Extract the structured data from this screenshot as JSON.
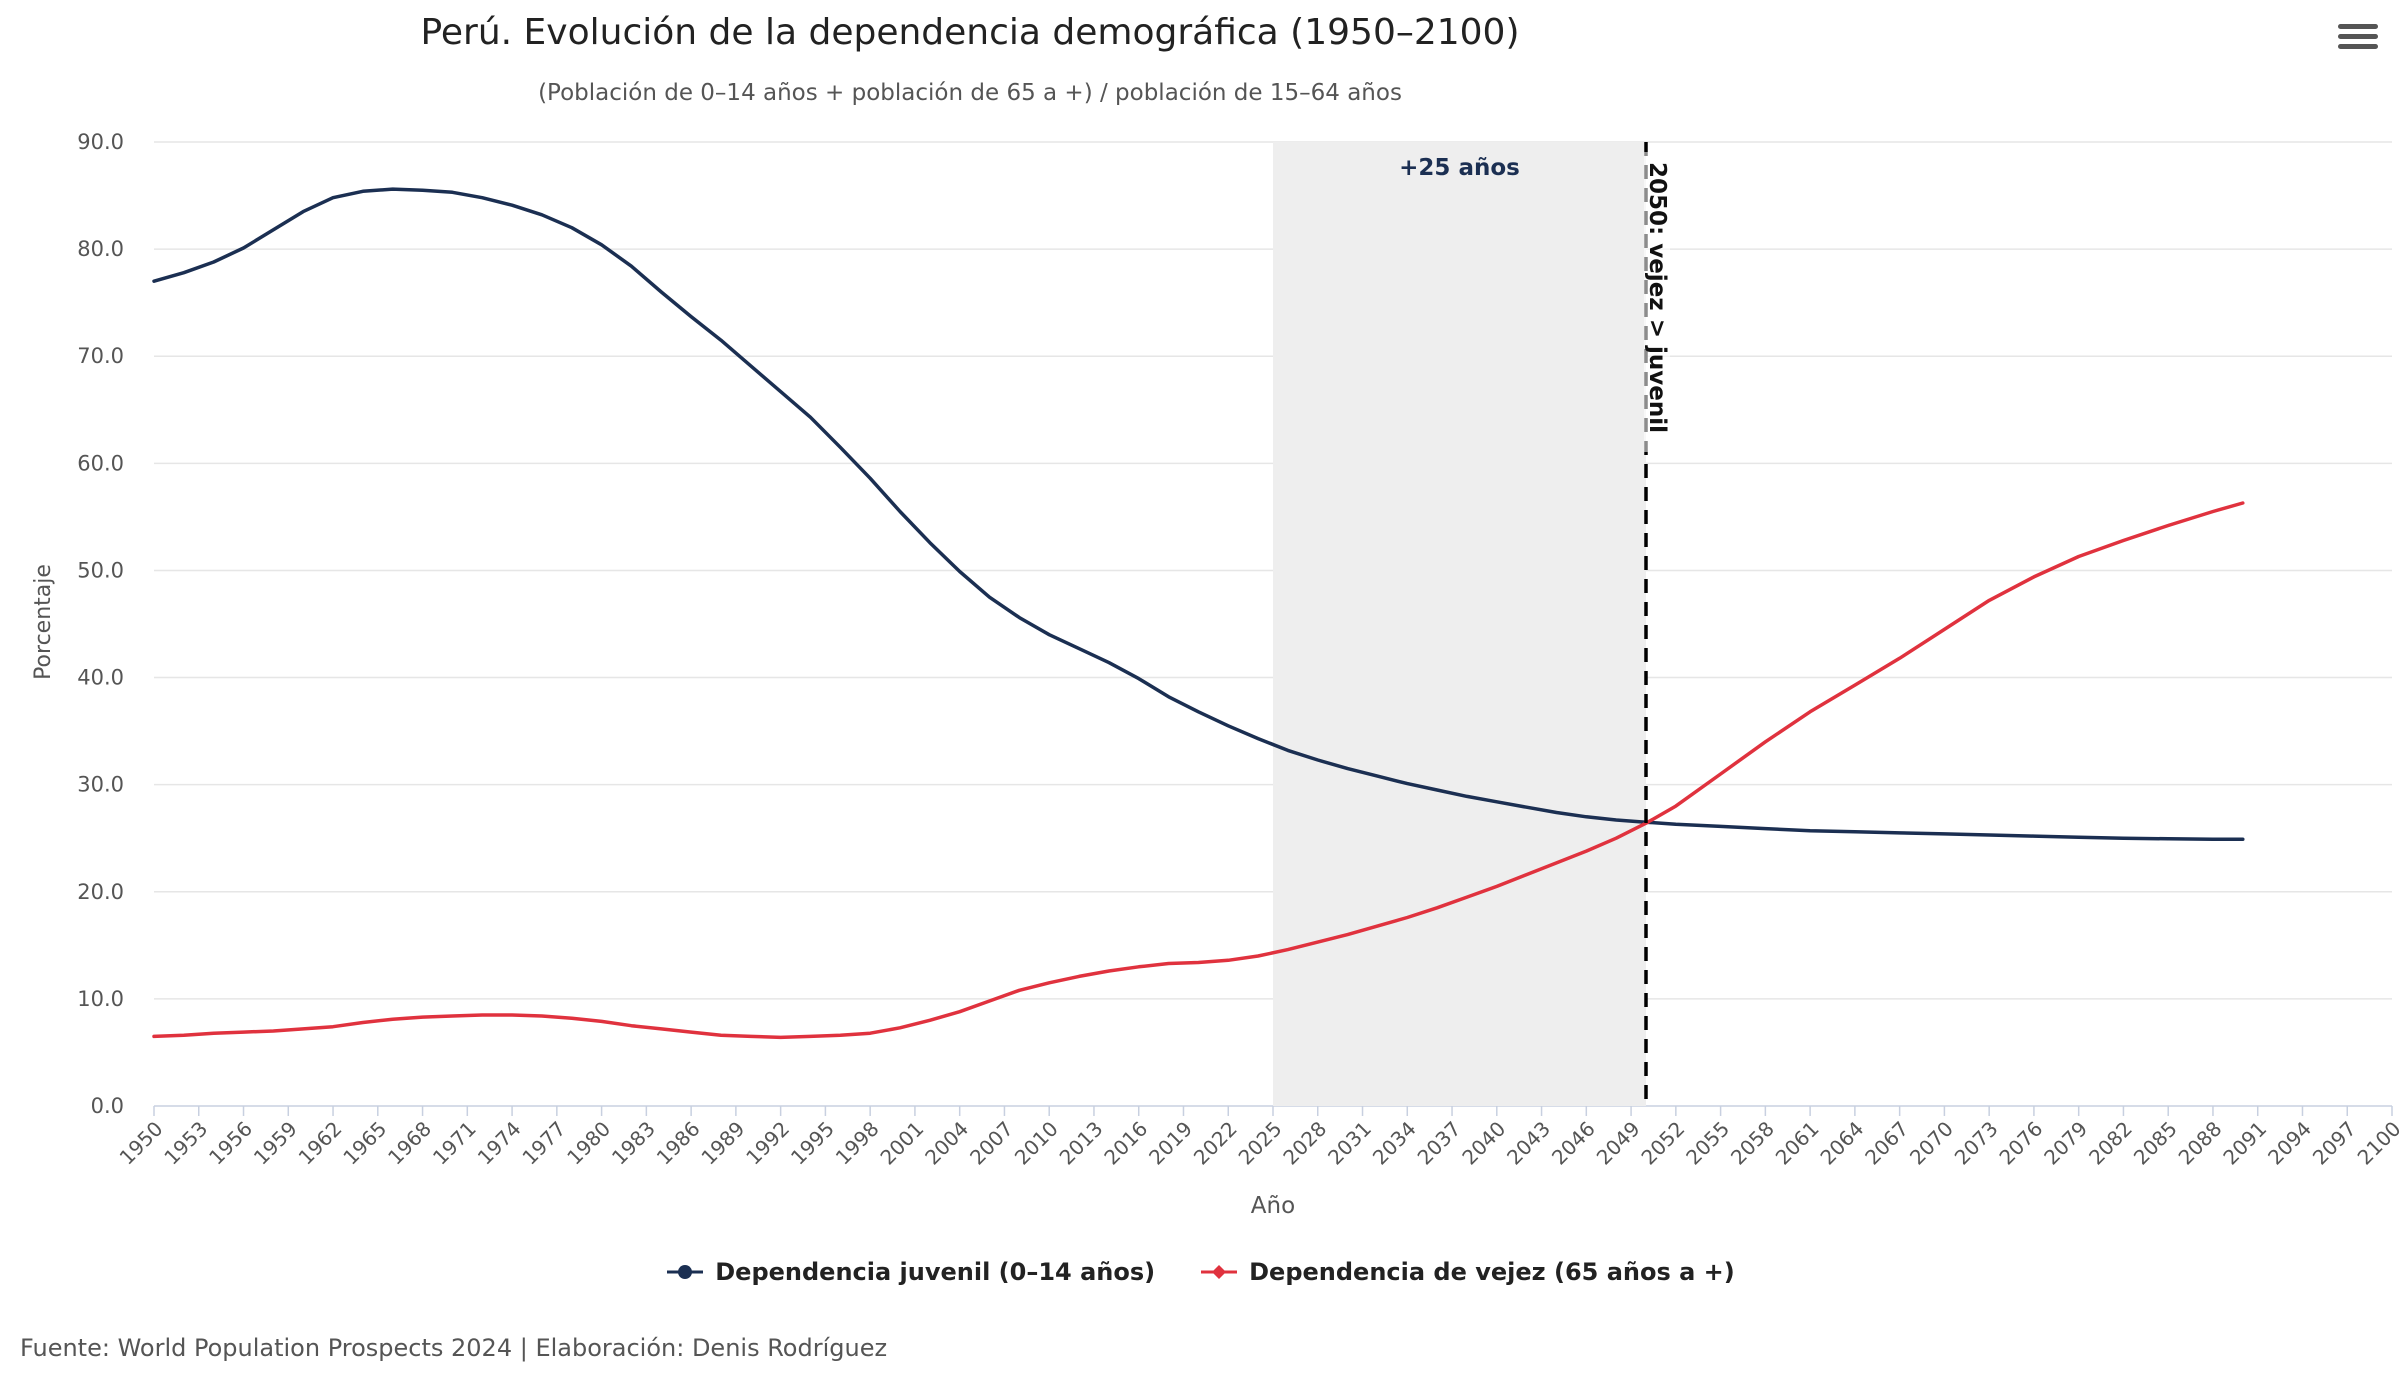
{
  "chart_data": {
    "type": "line",
    "title": "Perú. Evolución de la dependencia demográfica (1950–2100)",
    "subtitle": "(Población de 0–14 años + población de 65 a +) / población de 15–64 años",
    "xlabel": "Año",
    "ylabel": "Porcentaje",
    "xlim": [
      1950,
      2100
    ],
    "ylim": [
      0,
      90
    ],
    "y_ticks": [
      "0.0",
      "10.0",
      "20.0",
      "30.0",
      "40.0",
      "50.0",
      "60.0",
      "70.0",
      "80.0",
      "90.0"
    ],
    "x_ticks": [
      "1950",
      "1953",
      "1956",
      "1959",
      "1962",
      "1965",
      "1968",
      "1971",
      "1974",
      "1977",
      "1980",
      "1983",
      "1986",
      "1989",
      "1992",
      "1995",
      "1998",
      "2001",
      "2004",
      "2007",
      "2010",
      "2013",
      "2016",
      "2019",
      "2022",
      "2025",
      "2028",
      "2031",
      "2034",
      "2037",
      "2040",
      "2043",
      "2046",
      "2049",
      "2052",
      "2055",
      "2058",
      "2061",
      "2064",
      "2067",
      "2070",
      "2073",
      "2076",
      "2079",
      "2082",
      "2085",
      "2088",
      "2091",
      "2094",
      "2097",
      "2100"
    ],
    "grid": true,
    "legend_position": "bottom-center",
    "band": {
      "from": 2025,
      "to": 2050,
      "label": "+25 años",
      "color": "#eeeeee"
    },
    "vline": {
      "x": 2050,
      "label": "2050: vejez > juvenil",
      "color": "#000000"
    },
    "series": [
      {
        "name": "Dependencia juvenil (0–14 años)",
        "color": "#1b2f52",
        "x": [
          1950,
          1952,
          1954,
          1956,
          1958,
          1960,
          1962,
          1964,
          1966,
          1968,
          1970,
          1972,
          1974,
          1976,
          1978,
          1980,
          1982,
          1984,
          1986,
          1988,
          1990,
          1992,
          1994,
          1996,
          1998,
          2000,
          2002,
          2004,
          2006,
          2008,
          2010,
          2012,
          2014,
          2016,
          2018,
          2020,
          2022,
          2024,
          2026,
          2028,
          2030,
          2032,
          2034,
          2036,
          2038,
          2040,
          2042,
          2044,
          2046,
          2048,
          2050,
          2052,
          2055,
          2058,
          2061,
          2064,
          2067,
          2070,
          2073,
          2076,
          2079,
          2082,
          2085,
          2088,
          2090
        ],
        "values": [
          77.0,
          77.8,
          78.8,
          80.1,
          81.8,
          83.5,
          84.8,
          85.4,
          85.6,
          85.5,
          85.3,
          84.8,
          84.1,
          83.2,
          82.0,
          80.4,
          78.4,
          76.0,
          73.7,
          71.5,
          69.1,
          66.7,
          64.3,
          61.5,
          58.6,
          55.5,
          52.6,
          49.9,
          47.5,
          45.6,
          44.0,
          42.7,
          41.4,
          39.9,
          38.2,
          36.8,
          35.5,
          34.3,
          33.2,
          32.3,
          31.5,
          30.8,
          30.1,
          29.5,
          28.9,
          28.4,
          27.9,
          27.4,
          27.0,
          26.7,
          26.5,
          26.3,
          26.1,
          25.9,
          25.7,
          25.6,
          25.5,
          25.4,
          25.3,
          25.2,
          25.1,
          25.0,
          24.95,
          24.9,
          24.9
        ]
      },
      {
        "name": "Dependencia de vejez (65 años a +)",
        "color": "#e0323e",
        "x": [
          1950,
          1952,
          1954,
          1956,
          1958,
          1960,
          1962,
          1964,
          1966,
          1968,
          1970,
          1972,
          1974,
          1976,
          1978,
          1980,
          1982,
          1984,
          1986,
          1988,
          1990,
          1992,
          1994,
          1996,
          1998,
          2000,
          2002,
          2004,
          2006,
          2008,
          2010,
          2012,
          2014,
          2016,
          2018,
          2020,
          2022,
          2024,
          2026,
          2028,
          2030,
          2032,
          2034,
          2036,
          2038,
          2040,
          2042,
          2044,
          2046,
          2048,
          2050,
          2052,
          2055,
          2058,
          2061,
          2064,
          2067,
          2070,
          2073,
          2076,
          2079,
          2082,
          2085,
          2088,
          2090
        ],
        "values": [
          6.5,
          6.6,
          6.8,
          6.9,
          7.0,
          7.2,
          7.4,
          7.8,
          8.1,
          8.3,
          8.4,
          8.5,
          8.5,
          8.4,
          8.2,
          7.9,
          7.5,
          7.2,
          6.9,
          6.6,
          6.5,
          6.4,
          6.5,
          6.6,
          6.8,
          7.3,
          8.0,
          8.8,
          9.8,
          10.8,
          11.5,
          12.1,
          12.6,
          13.0,
          13.3,
          13.4,
          13.6,
          14.0,
          14.6,
          15.3,
          16.0,
          16.8,
          17.6,
          18.5,
          19.5,
          20.5,
          21.6,
          22.7,
          23.8,
          25.0,
          26.4,
          28.0,
          31.0,
          34.0,
          36.8,
          39.3,
          41.8,
          44.5,
          47.2,
          49.4,
          51.3,
          52.8,
          54.2,
          55.5,
          56.3
        ]
      }
    ]
  },
  "source": "Fuente: World Population Prospects 2024 | Elaboración: Denis Rodríguez",
  "menu_icon": "hamburger-menu-icon"
}
